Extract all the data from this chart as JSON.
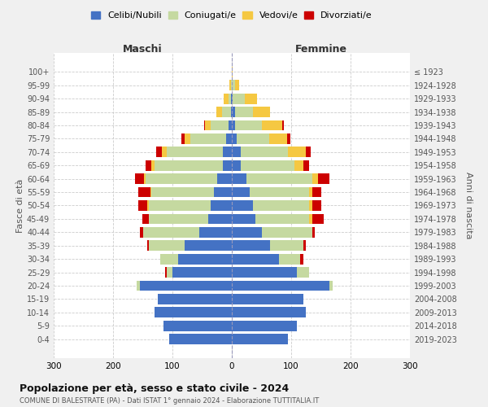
{
  "age_groups": [
    "0-4",
    "5-9",
    "10-14",
    "15-19",
    "20-24",
    "25-29",
    "30-34",
    "35-39",
    "40-44",
    "45-49",
    "50-54",
    "55-59",
    "60-64",
    "65-69",
    "70-74",
    "75-79",
    "80-84",
    "85-89",
    "90-94",
    "95-99",
    "100+"
  ],
  "birth_years": [
    "2019-2023",
    "2014-2018",
    "2009-2013",
    "2004-2008",
    "1999-2003",
    "1994-1998",
    "1989-1993",
    "1984-1988",
    "1979-1983",
    "1974-1978",
    "1969-1973",
    "1964-1968",
    "1959-1963",
    "1954-1958",
    "1949-1953",
    "1944-1948",
    "1939-1943",
    "1934-1938",
    "1929-1933",
    "1924-1928",
    "≤ 1923"
  ],
  "colors": {
    "celibi": "#4472c4",
    "coniugati": "#c5d9a0",
    "vedovi": "#f5c842",
    "divorziati": "#cc0000"
  },
  "maschi": {
    "celibi": [
      105,
      115,
      130,
      125,
      155,
      100,
      90,
      80,
      55,
      40,
      35,
      30,
      25,
      15,
      15,
      10,
      5,
      1,
      1,
      0,
      0
    ],
    "coniugati": [
      0,
      0,
      0,
      0,
      5,
      10,
      30,
      60,
      95,
      100,
      105,
      105,
      120,
      115,
      95,
      60,
      30,
      15,
      5,
      2,
      0
    ],
    "vedovi": [
      0,
      0,
      0,
      0,
      0,
      0,
      0,
      0,
      0,
      0,
      2,
      2,
      3,
      5,
      8,
      10,
      10,
      10,
      8,
      2,
      0
    ],
    "divorziati": [
      0,
      0,
      0,
      0,
      0,
      3,
      0,
      3,
      5,
      10,
      15,
      20,
      15,
      10,
      10,
      5,
      2,
      0,
      0,
      0,
      0
    ]
  },
  "femmine": {
    "celibi": [
      95,
      110,
      125,
      120,
      165,
      110,
      80,
      65,
      50,
      40,
      35,
      30,
      25,
      15,
      15,
      8,
      5,
      5,
      2,
      0,
      0
    ],
    "coniugati": [
      0,
      0,
      0,
      0,
      5,
      20,
      35,
      55,
      85,
      90,
      95,
      100,
      110,
      90,
      80,
      55,
      45,
      30,
      20,
      5,
      0
    ],
    "vedovi": [
      0,
      0,
      0,
      0,
      0,
      0,
      0,
      0,
      0,
      5,
      5,
      5,
      10,
      15,
      30,
      30,
      35,
      30,
      20,
      8,
      2
    ],
    "divorziati": [
      0,
      0,
      0,
      0,
      0,
      0,
      5,
      5,
      5,
      20,
      15,
      15,
      20,
      10,
      8,
      5,
      3,
      0,
      0,
      0,
      0
    ]
  },
  "title": "Popolazione per età, sesso e stato civile - 2024",
  "subtitle": "COMUNE DI BALESTRATE (PA) - Dati ISTAT 1° gennaio 2024 - Elaborazione TUTTITALIA.IT",
  "ylabel_left": "Fasce di età",
  "ylabel_right": "Anni di nascita",
  "xlabel_left": "Maschi",
  "xlabel_right": "Femmine",
  "xlim": 300,
  "legend_labels": [
    "Celibi/Nubili",
    "Coniugati/e",
    "Vedovi/e",
    "Divorziati/e"
  ],
  "bg_color": "#f0f0f0",
  "plot_bg_color": "#ffffff"
}
